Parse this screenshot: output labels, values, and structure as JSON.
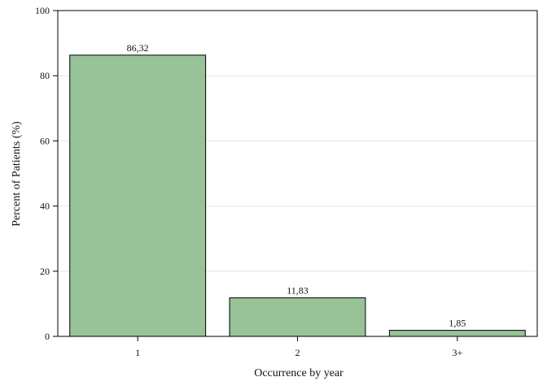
{
  "chart_data": {
    "type": "bar",
    "title": "",
    "xlabel": "Occurrence by year",
    "ylabel": "Percent of Patients (%)",
    "categories": [
      "1",
      "2",
      "3+"
    ],
    "values": [
      86.32,
      11.83,
      1.85
    ],
    "data_labels": [
      "86,32",
      "11,83",
      "1,85"
    ],
    "ylim": [
      0,
      100
    ],
    "yticks": [
      0,
      20,
      40,
      60,
      80,
      100
    ],
    "ytick_labels": [
      "0",
      "20",
      "40",
      "60",
      "80",
      "100"
    ],
    "grid": "horizontal",
    "legend": "none",
    "colors": {
      "bar_fill": "#98c297",
      "bar_stroke": "#000000",
      "grid": "#e6e6e6",
      "axis": "#000000",
      "background": "#ffffff"
    }
  }
}
